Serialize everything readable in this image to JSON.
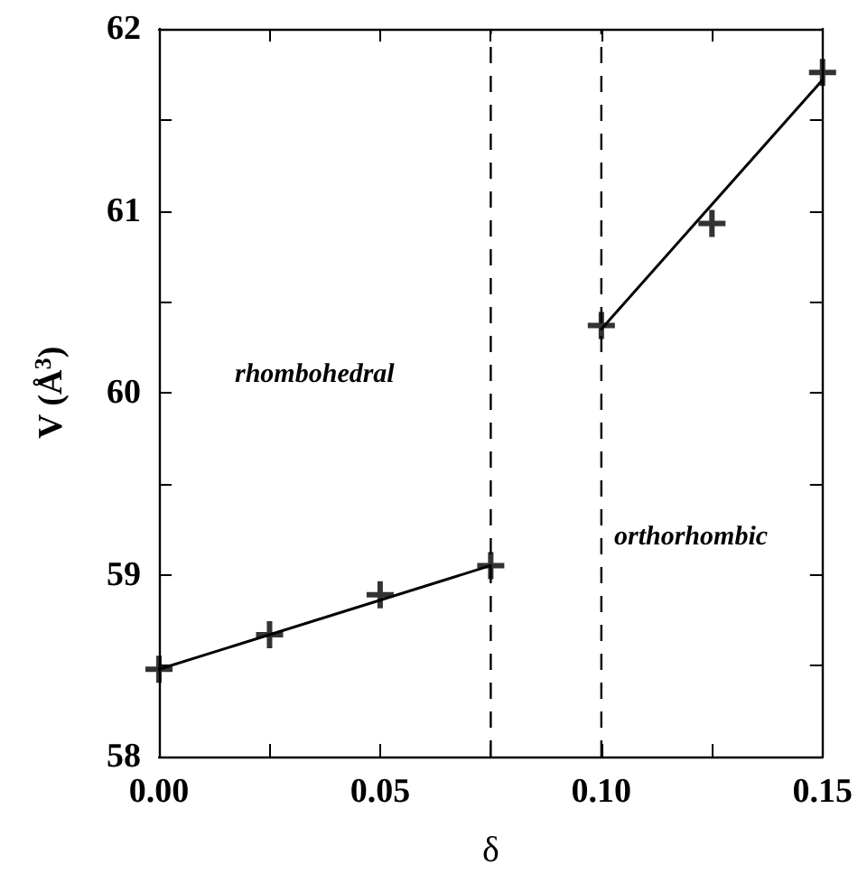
{
  "chart_data": {
    "type": "scatter",
    "xlabel": "δ",
    "ylabel": "V (Å$^{3}$)",
    "x": [
      0,
      0.025,
      0.05,
      0.075,
      0.1,
      0.125,
      0.15
    ],
    "series": [
      {
        "color": "#000000",
        "marker": "cross",
        "values": [
          58.48,
          58.67,
          58.89,
          59.05,
          60.37,
          60.93,
          61.76
        ]
      },
      {
        "type": "line",
        "color": "#000000",
        "marker": "none",
        "line_style": "solid",
        "x": [
          0,
          0.075
        ],
        "values": [
          58.48,
          59.05
        ]
      },
      {
        "type": "line",
        "color": "#000000",
        "marker": "none",
        "line_style": "solid",
        "x": [
          0.1,
          0.15
        ],
        "values": [
          60.35,
          61.72
        ]
      }
    ],
    "xlim": [
      0,
      0.15
    ],
    "xticks": [
      {
        "value": 0,
        "label": "0.00"
      },
      {
        "value": 0.025,
        "label": null
      },
      {
        "value": 0.05,
        "label": "0.05"
      },
      {
        "value": 0.075,
        "label": null
      },
      {
        "value": 0.1,
        "label": "0.10"
      },
      {
        "value": 0.125,
        "label": null
      },
      {
        "value": 0.15,
        "label": "0.15"
      }
    ],
    "ylim": [
      58,
      62
    ],
    "yticks": [
      58,
      {
        "value": 58.5,
        "label": null
      },
      59,
      {
        "value": 59.5,
        "label": null
      },
      60,
      {
        "value": 60.5,
        "label": null
      },
      61,
      {
        "value": 61.5,
        "label": null
      },
      62
    ],
    "ref_lines": [
      {
        "axis": "x",
        "value": 0.075,
        "label": null,
        "line_style": "dashed"
      },
      {
        "axis": "x",
        "value": 0.1,
        "label": null,
        "line_style": "dashed"
      }
    ],
    "annotations": [
      "rhombohedral",
      "orthorhombic"
    ],
    "grid": false
  }
}
